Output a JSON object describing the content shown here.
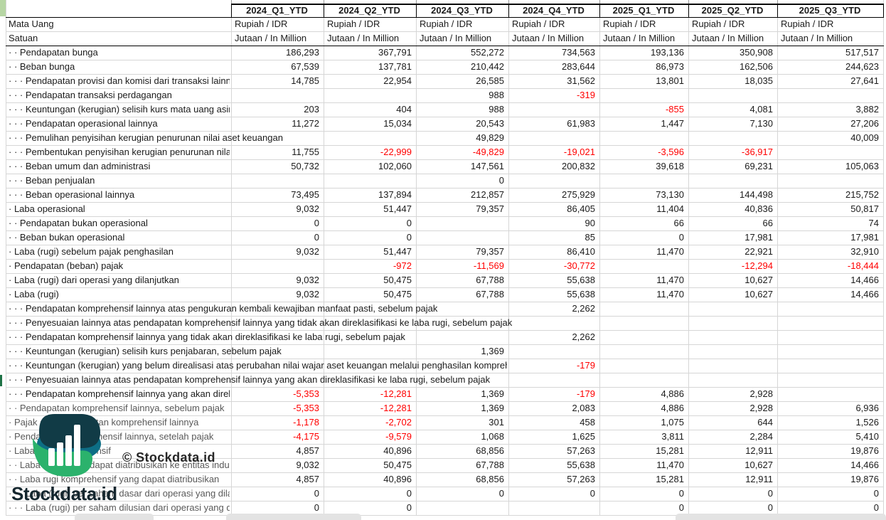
{
  "sheet": {
    "columns": [
      "2024_Q1_YTD",
      "2024_Q2_YTD",
      "2024_Q3_YTD",
      "2024_Q4_YTD",
      "2025_Q1_YTD",
      "2025_Q2_YTD",
      "2025_Q3_YTD"
    ],
    "currency_row": {
      "label": "Mata Uang",
      "values": [
        "Rupiah / IDR",
        "Rupiah / IDR",
        "Rupiah / IDR",
        "Rupiah / IDR",
        "Rupiah / IDR",
        "Rupiah / IDR",
        "Rupiah / IDR"
      ]
    },
    "unit_row": {
      "label": "Satuan",
      "values": [
        "Jutaan / In Million",
        "Jutaan / In Million",
        "Jutaan / In Million",
        "Jutaan / In Million",
        "Jutaan / In Million",
        "Jutaan / In Million",
        "Jutaan / In Million"
      ]
    },
    "rows": [
      {
        "label": "· · Pendapatan bunga",
        "values": [
          "186,293",
          "367,791",
          "552,272",
          "734,563",
          "193,136",
          "350,908",
          "517,517"
        ]
      },
      {
        "label": "· · Beban bunga",
        "values": [
          "67,539",
          "137,781",
          "210,442",
          "283,644",
          "86,973",
          "162,506",
          "244,623"
        ]
      },
      {
        "label": "· · · Pendapatan provisi dan komisi dari transaksi lainnya",
        "values": [
          "14,785",
          "22,954",
          "26,585",
          "31,562",
          "13,801",
          "18,035",
          "27,641"
        ]
      },
      {
        "label": "· · · Pendapatan transaksi perdagangan",
        "values": [
          "",
          "",
          "988",
          "-319",
          "",
          "",
          ""
        ]
      },
      {
        "label": "· · · Keuntungan (kerugian) selisih kurs mata uang asing",
        "values": [
          "203",
          "404",
          "988",
          "",
          "-855",
          "4,081",
          "3,882"
        ]
      },
      {
        "label": "· · · Pendapatan operasional lainnya",
        "values": [
          "11,272",
          "15,034",
          "20,543",
          "61,983",
          "1,447",
          "7,130",
          "27,206"
        ]
      },
      {
        "label": "· · · Pemulihan penyisihan kerugian penurunan nilai aset keuangan",
        "values": [
          "",
          "",
          "49,829",
          "",
          "",
          "",
          "40,009"
        ]
      },
      {
        "label": "· · · Pembentukan penyisihan kerugian penurunan nilai aset keuangan",
        "values": [
          "11,755",
          "-22,999",
          "-49,829",
          "-19,021",
          "-3,596",
          "-36,917",
          ""
        ]
      },
      {
        "label": "· · · Beban umum dan administrasi",
        "values": [
          "50,732",
          "102,060",
          "147,561",
          "200,832",
          "39,618",
          "69,231",
          "105,063"
        ]
      },
      {
        "label": "· · · Beban penjualan",
        "values": [
          "",
          "",
          "0",
          "",
          "",
          "",
          ""
        ]
      },
      {
        "label": "· · · Beban operasional lainnya",
        "values": [
          "73,495",
          "137,894",
          "212,857",
          "275,929",
          "73,130",
          "144,498",
          "215,752"
        ]
      },
      {
        "label": "· Laba operasional",
        "values": [
          "9,032",
          "51,447",
          "79,357",
          "86,405",
          "11,404",
          "40,836",
          "50,817"
        ]
      },
      {
        "label": "· · Pendapatan bukan operasional",
        "values": [
          "0",
          "0",
          "",
          "90",
          "66",
          "66",
          "74"
        ]
      },
      {
        "label": "· · Beban bukan operasional",
        "values": [
          "0",
          "0",
          "",
          "85",
          "0",
          "17,981",
          "17,981"
        ]
      },
      {
        "label": "· Laba (rugi) sebelum pajak penghasilan",
        "values": [
          "9,032",
          "51,447",
          "79,357",
          "86,410",
          "11,470",
          "22,921",
          "32,910"
        ]
      },
      {
        "label": "· Pendapatan (beban) pajak",
        "values": [
          "",
          "-972",
          "-11,569",
          "-30,772",
          "",
          "-12,294",
          "-18,444"
        ]
      },
      {
        "label": "· Laba (rugi) dari operasi yang dilanjutkan",
        "values": [
          "9,032",
          "50,475",
          "67,788",
          "55,638",
          "11,470",
          "10,627",
          "14,466"
        ]
      },
      {
        "label": "· Laba (rugi)",
        "values": [
          "9,032",
          "50,475",
          "67,788",
          "55,638",
          "11,470",
          "10,627",
          "14,466"
        ]
      },
      {
        "label": "· · · Pendapatan komprehensif lainnya atas pengukuran kembali kewajiban manfaat pasti, sebelum pajak",
        "values": [
          "",
          "",
          "",
          "2,262",
          "",
          "",
          ""
        ]
      },
      {
        "label": "· · · Penyesuaian lainnya atas pendapatan komprehensif lainnya yang tidak akan direklasifikasi ke laba rugi, sebelum pajak",
        "values": [
          "",
          "",
          "",
          "",
          "",
          "",
          ""
        ]
      },
      {
        "label": "· · · Pendapatan komprehensif lainnya yang tidak akan direklasifikasi ke laba rugi, sebelum pajak",
        "values": [
          "",
          "",
          "",
          "2,262",
          "",
          "",
          ""
        ]
      },
      {
        "label": "· · · Keuntungan (kerugian) selisih kurs penjabaran, sebelum pajak",
        "values": [
          "",
          "",
          "1,369",
          "",
          "",
          "",
          ""
        ]
      },
      {
        "label": "· · · Keuntungan (kerugian) yang belum direalisasi atas perubahan nilai wajar aset keuangan melalui penghasilan komprehensif lainnya",
        "values": [
          "",
          "",
          "",
          "-179",
          "",
          "",
          ""
        ]
      },
      {
        "label": "· · · Penyesuaian lainnya atas pendapatan komprehensif lainnya yang akan direklasifikasi ke laba rugi, sebelum pajak",
        "values": [
          "",
          "",
          "",
          "",
          "",
          "",
          ""
        ]
      },
      {
        "label": "· · · Pendapatan komprehensif lainnya yang akan direklasifikasi ke laba rugi, sebelum pajak",
        "values": [
          "-5,353",
          "-12,281",
          "1,369",
          "-179",
          "4,886",
          "2,928",
          ""
        ]
      },
      {
        "label": "· · Pendapatan komprehensif lainnya, sebelum pajak",
        "values": [
          "-5,353",
          "-12,281",
          "1,369",
          "2,083",
          "4,886",
          "2,928",
          "6,936"
        ],
        "muted": true
      },
      {
        "label": "· Pajak atas pendapatan komprehensif lainnya",
        "values": [
          "-1,178",
          "-2,702",
          "301",
          "458",
          "1,075",
          "644",
          "1,526"
        ],
        "muted": true
      },
      {
        "label": "· Pendapatan komprehensif lainnya, setelah pajak",
        "values": [
          "-4,175",
          "-9,579",
          "1,068",
          "1,625",
          "3,811",
          "2,284",
          "5,410"
        ],
        "muted": true
      },
      {
        "label": "· Laba rugi komprehensif",
        "values": [
          "4,857",
          "40,896",
          "68,856",
          "57,263",
          "15,281",
          "12,911",
          "19,876"
        ],
        "muted": true
      },
      {
        "label": "· · Laba (rugi) yang dapat diatribusikan ke entitas induk",
        "values": [
          "9,032",
          "50,475",
          "67,788",
          "55,638",
          "11,470",
          "10,627",
          "14,466"
        ],
        "muted": true
      },
      {
        "label": "· · Laba rugi komprehensif yang dapat diatribusikan",
        "values": [
          "4,857",
          "40,896",
          "68,856",
          "57,263",
          "15,281",
          "12,911",
          "19,876"
        ],
        "muted": true
      },
      {
        "label": "· · · Laba (rugi) per saham dasar dari operasi yang dilanjutkan",
        "values": [
          "0",
          "0",
          "0",
          "0",
          "0",
          "0",
          "0"
        ],
        "muted": true
      },
      {
        "label": "· · · Laba (rugi) per saham dilusian dari operasi yang dilanjutkan",
        "values": [
          "0",
          "0",
          "",
          "",
          "0",
          "0",
          "0"
        ],
        "muted": true
      }
    ]
  },
  "watermark": {
    "copyright": "© Stockdata.id",
    "brand": "Stockdata.id"
  },
  "colors": {
    "negative": "#ff0000",
    "gridline": "#d6d6d6",
    "header_border": "#000000",
    "muted_label": "#595959",
    "logo_dark": "#113b46",
    "logo_teal": "#0d6e85",
    "logo_green": "#2bb26c",
    "corner_cell_green": "#b7d6a4",
    "row_marker_green": "#1f7246"
  }
}
